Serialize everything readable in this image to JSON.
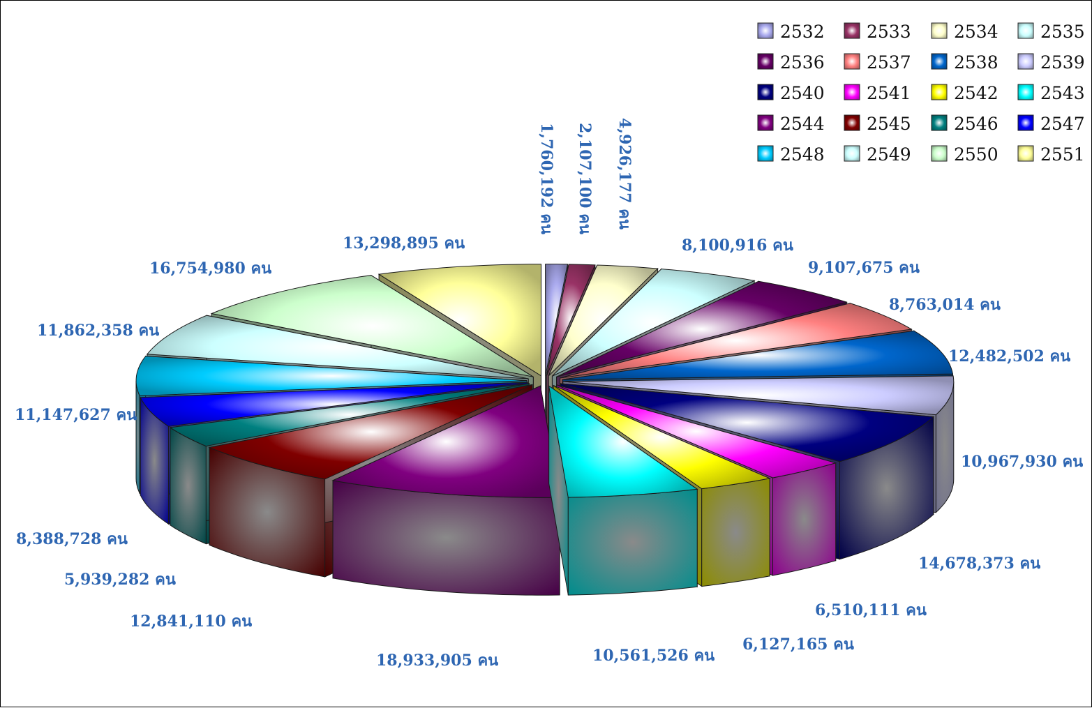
{
  "chart_data": {
    "type": "pie",
    "style": "exploded 3D pie",
    "title": "",
    "legend_position": "top-right",
    "unit_suffix": "คน",
    "categories": [
      "2532",
      "2533",
      "2534",
      "2535",
      "2536",
      "2537",
      "2538",
      "2539",
      "2540",
      "2541",
      "2542",
      "2543",
      "2544",
      "2545",
      "2546",
      "2547",
      "2548",
      "2549",
      "2550",
      "2551"
    ],
    "values": [
      1760192,
      2107100,
      4926177,
      8100916,
      9107675,
      8763014,
      12482502,
      10967930,
      14678373,
      6510111,
      6127165,
      10561526,
      18933905,
      12841110,
      5939282,
      8388728,
      11147627,
      11862358,
      16754980,
      13298895
    ],
    "labels": [
      "1,760,192 คน",
      "2,107,100 คน",
      "4,926,177 คน",
      "8,100,916 คน",
      "9,107,675 คน",
      "8,763,014 คน",
      "12,482,502 คน",
      "10,967,930 คน",
      "14,678,373 คน",
      "6,510,111 คน",
      "6,127,165 คน",
      "10,561,526 คน",
      "18,933,905 คน",
      "12,841,110 คน",
      "5,939,282 คน",
      "8,388,728 คน",
      "11,147,627 คน",
      "11,862,358 คน",
      "16,754,980 คน",
      "13,298,895 คน"
    ],
    "colors": [
      "#aaaaee",
      "#993366",
      "#ffffcc",
      "#ccffff",
      "#660066",
      "#ff8080",
      "#0066cc",
      "#ccccff",
      "#000080",
      "#ff00ff",
      "#ffff00",
      "#00ffff",
      "#800080",
      "#800000",
      "#008080",
      "#0000ff",
      "#00ccff",
      "#ccffff",
      "#ccffcc",
      "#ffff99"
    ],
    "label_color": "#2e66b2"
  }
}
